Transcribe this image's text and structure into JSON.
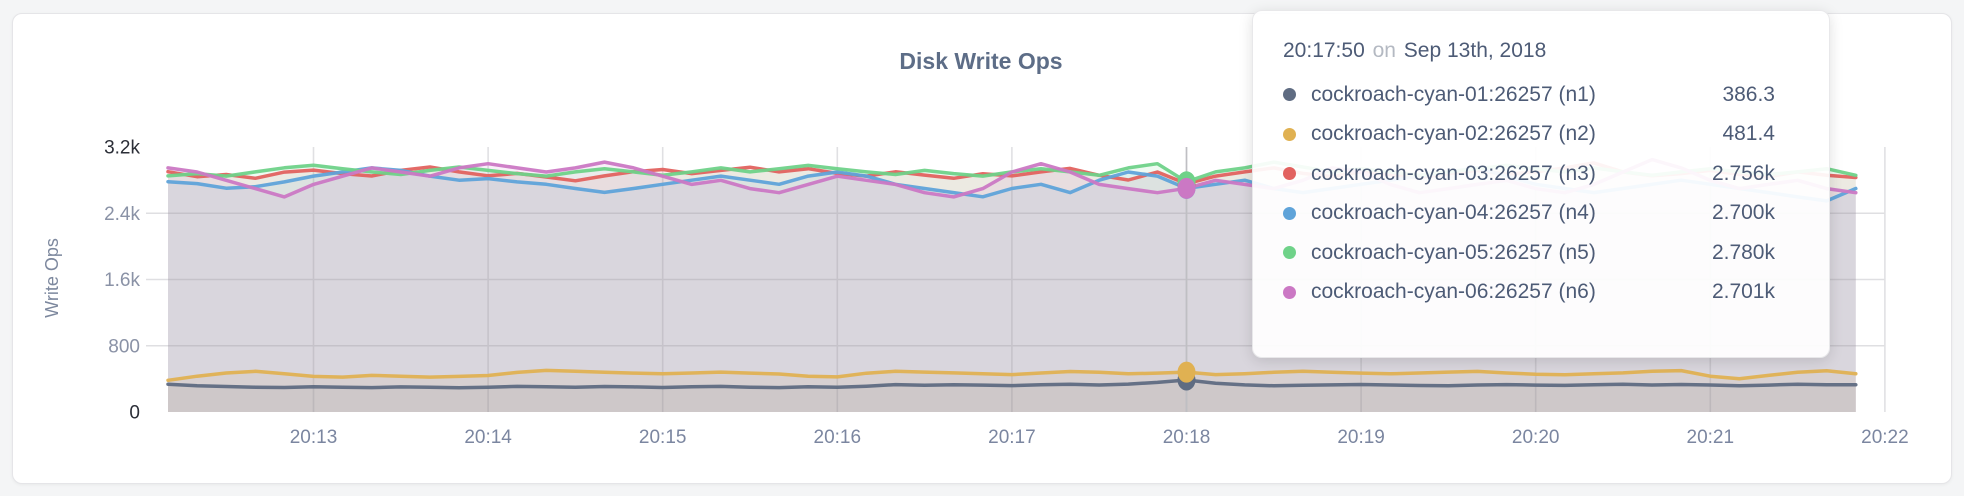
{
  "chart_data": {
    "type": "area",
    "title": "Disk Write Ops",
    "ylabel": "Write Ops",
    "xlabel": "",
    "grid": "on",
    "ylim": [
      0,
      3200
    ],
    "y_ticks": [
      {
        "label": "3.2k",
        "value": 3200
      },
      {
        "label": "2.4k",
        "value": 2400
      },
      {
        "label": "1.6k",
        "value": 1600
      },
      {
        "label": "800",
        "value": 800
      },
      {
        "label": "0",
        "value": 0
      }
    ],
    "x_ticks": [
      "20:13",
      "20:14",
      "20:15",
      "20:16",
      "20:17",
      "20:18",
      "20:19",
      "20:20",
      "20:21",
      "20:22"
    ],
    "x_start": "20:12:10",
    "x_step_seconds": 10,
    "hover_time": "20:17:50",
    "hover_index": 35,
    "series": [
      {
        "name": "cockroach-cyan-01:26257 (n1)",
        "color": "#5f6c82",
        "values": [
          336,
          318,
          308,
          300,
          296,
          304,
          299,
          295,
          303,
          298,
          294,
          300,
          309,
          304,
          299,
          308,
          303,
          296,
          305,
          309,
          299,
          295,
          304,
          300,
          312,
          331,
          322,
          330,
          325,
          319,
          329,
          334,
          326,
          337,
          358,
          386.3,
          348,
          327,
          316,
          322,
          327,
          332,
          326,
          320,
          316,
          326,
          331,
          325,
          321,
          330,
          336,
          326,
          332,
          326,
          318,
          325,
          336,
          330,
          328
        ]
      },
      {
        "name": "cockroach-cyan-02:26257 (n2)",
        "color": "#e0b152",
        "values": [
          383,
          432,
          471,
          492,
          463,
          430,
          421,
          442,
          432,
          421,
          430,
          441,
          478,
          502,
          491,
          481,
          470,
          462,
          471,
          482,
          470,
          459,
          432,
          424,
          469,
          491,
          482,
          472,
          463,
          452,
          471,
          489,
          479,
          461,
          470,
          481.4,
          452,
          462,
          479,
          491,
          481,
          470,
          461,
          471,
          482,
          490,
          471,
          456,
          450,
          462,
          472,
          491,
          500,
          432,
          402,
          442,
          481,
          498,
          462
        ]
      },
      {
        "name": "cockroach-cyan-03:26257 (n3)",
        "color": "#e2625f",
        "values": [
          2902,
          2841,
          2868,
          2822,
          2897,
          2921,
          2879,
          2850,
          2918,
          2958,
          2899,
          2852,
          2881,
          2838,
          2792,
          2851,
          2902,
          2928,
          2879,
          2918,
          2956,
          2899,
          2938,
          2881,
          2849,
          2901,
          2861,
          2822,
          2878,
          2851,
          2899,
          2941,
          2858,
          2801,
          2898,
          2756,
          2849,
          2899,
          2948,
          2881,
          2842,
          2899,
          2868,
          2832,
          2879,
          2918,
          2869,
          2899,
          2948,
          3008,
          2899,
          2852,
          2879,
          2918,
          2868,
          2841,
          2899,
          2858,
          2832
        ]
      },
      {
        "name": "cockroach-cyan-04:26257 (n4)",
        "color": "#5fa3d9",
        "values": [
          2781,
          2758,
          2702,
          2721,
          2779,
          2849,
          2898,
          2948,
          2918,
          2849,
          2799,
          2819,
          2779,
          2749,
          2699,
          2652,
          2699,
          2749,
          2799,
          2849,
          2799,
          2749,
          2849,
          2898,
          2849,
          2749,
          2699,
          2649,
          2599,
          2699,
          2749,
          2649,
          2799,
          2898,
          2849,
          2700,
          2749,
          2799,
          2699,
          2649,
          2699,
          2749,
          2799,
          2849,
          2898,
          2948,
          2849,
          2749,
          2699,
          2649,
          2699,
          2749,
          2799,
          2749,
          2699,
          2649,
          2598,
          2549,
          2699
        ]
      },
      {
        "name": "cockroach-cyan-05:26257 (n5)",
        "color": "#6fd289",
        "values": [
          2851,
          2879,
          2849,
          2899,
          2949,
          2979,
          2938,
          2899,
          2868,
          2918,
          2958,
          2918,
          2879,
          2849,
          2899,
          2938,
          2899,
          2858,
          2899,
          2948,
          2899,
          2938,
          2978,
          2938,
          2899,
          2868,
          2918,
          2879,
          2849,
          2899,
          2938,
          2899,
          2858,
          2948,
          2998,
          2780,
          2899,
          2948,
          3018,
          2958,
          2899,
          2938,
          2899,
          2858,
          2899,
          2938,
          2978,
          2938,
          2899,
          2948,
          2899,
          2858,
          2899,
          2938,
          2899,
          2868,
          2899,
          2938,
          2858
        ]
      },
      {
        "name": "cockroach-cyan-06:26257 (n6)",
        "color": "#cb78c4",
        "values": [
          2948,
          2898,
          2798,
          2698,
          2598,
          2748,
          2848,
          2948,
          2898,
          2848,
          2948,
          2998,
          2948,
          2898,
          2948,
          3018,
          2948,
          2848,
          2748,
          2798,
          2698,
          2648,
          2748,
          2848,
          2798,
          2748,
          2648,
          2598,
          2698,
          2898,
          2998,
          2898,
          2748,
          2698,
          2648,
          2701,
          2798,
          2748,
          2698,
          2798,
          2948,
          2898,
          2748,
          2648,
          2698,
          2748,
          2798,
          2698,
          2648,
          2748,
          2898,
          3048,
          2948,
          2798,
          2698,
          2748,
          2798,
          2698,
          2648
        ]
      }
    ]
  },
  "tooltip": {
    "time": "20:17:50",
    "connector": "on",
    "date": "Sep 13th, 2018",
    "rows": [
      {
        "series": 0,
        "value": "386.3"
      },
      {
        "series": 1,
        "value": "481.4"
      },
      {
        "series": 2,
        "value": "2.756k"
      },
      {
        "series": 3,
        "value": "2.700k"
      },
      {
        "series": 4,
        "value": "2.780k"
      },
      {
        "series": 5,
        "value": "2.701k"
      }
    ]
  }
}
